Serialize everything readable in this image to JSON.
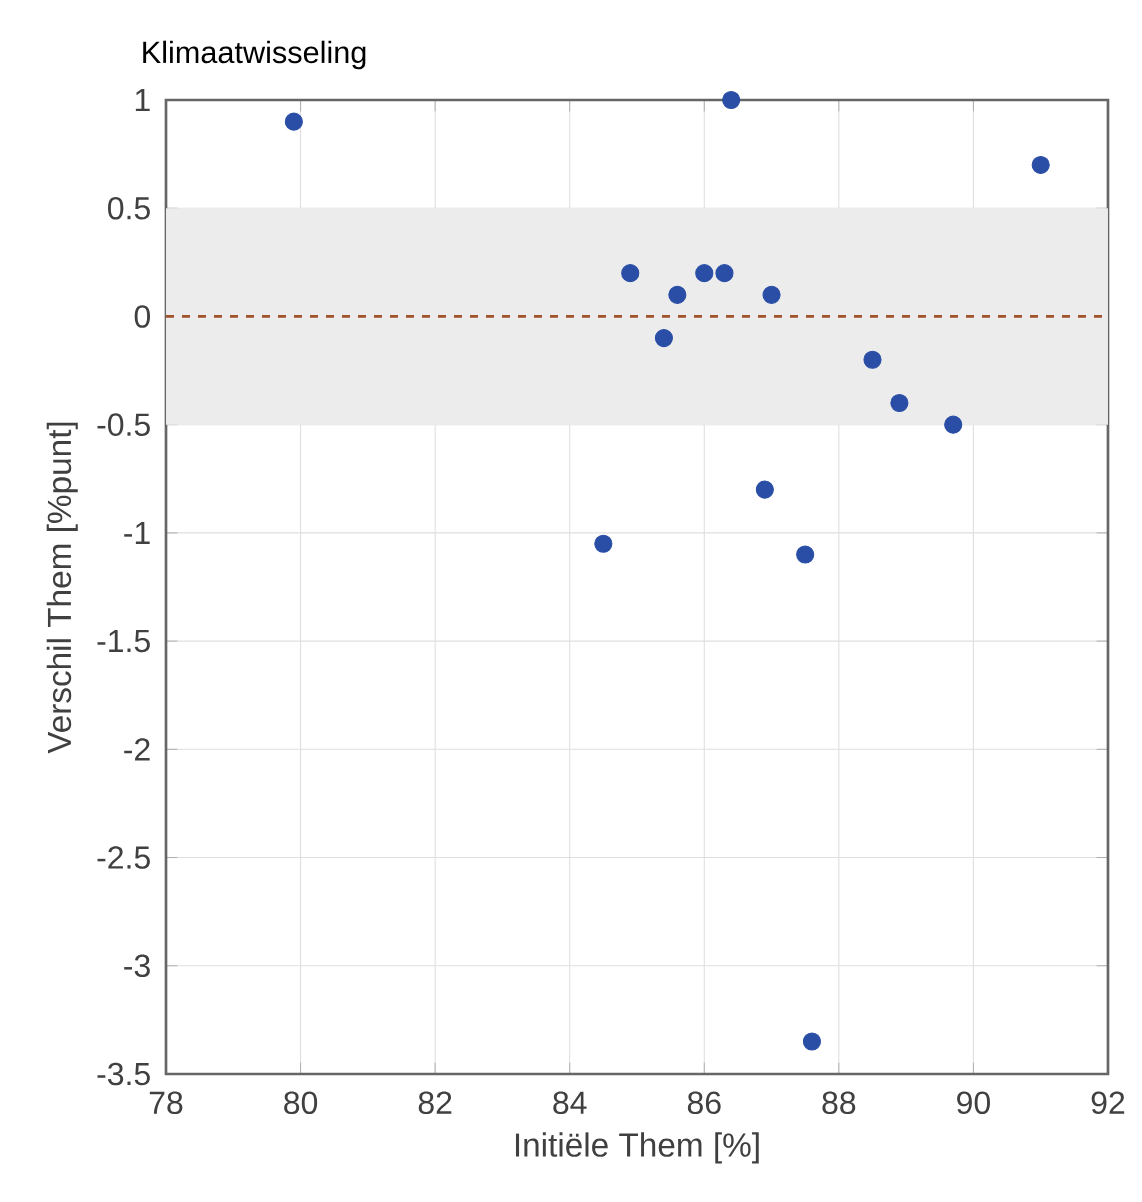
{
  "chart_data": {
    "type": "scatter",
    "title": "Klimaatwisseling",
    "xlabel": "Initiële Them [%]",
    "ylabel": "Verschil Them [%punt]",
    "x": [
      79.9,
      84.5,
      84.9,
      85.4,
      85.6,
      86.0,
      86.3,
      86.4,
      86.9,
      87.0,
      87.5,
      87.6,
      88.5,
      88.9,
      89.7,
      91.0
    ],
    "values": [
      0.9,
      -1.05,
      0.2,
      -0.1,
      0.1,
      0.2,
      0.2,
      1.0,
      -0.8,
      0.1,
      -1.1,
      -3.35,
      -0.2,
      -0.4,
      -0.5,
      0.7
    ],
    "color": "#2a4ea6",
    "grid": true,
    "xlim": [
      78,
      92
    ],
    "xticks": [
      78,
      80,
      82,
      84,
      86,
      88,
      90,
      92
    ],
    "ylim": [
      -3.5,
      1
    ],
    "yticks": [
      -3.5,
      -3,
      -2.5,
      -2,
      -1.5,
      -1,
      -0.5,
      0,
      0.5,
      1
    ],
    "ref_lines": [
      {
        "axis": "y",
        "value": 0,
        "color": "#a0522d",
        "line_style": "dashed"
      }
    ],
    "bands": [
      {
        "axis": "y",
        "from": -0.5,
        "to": 0.5,
        "color": "#ececec"
      }
    ]
  }
}
